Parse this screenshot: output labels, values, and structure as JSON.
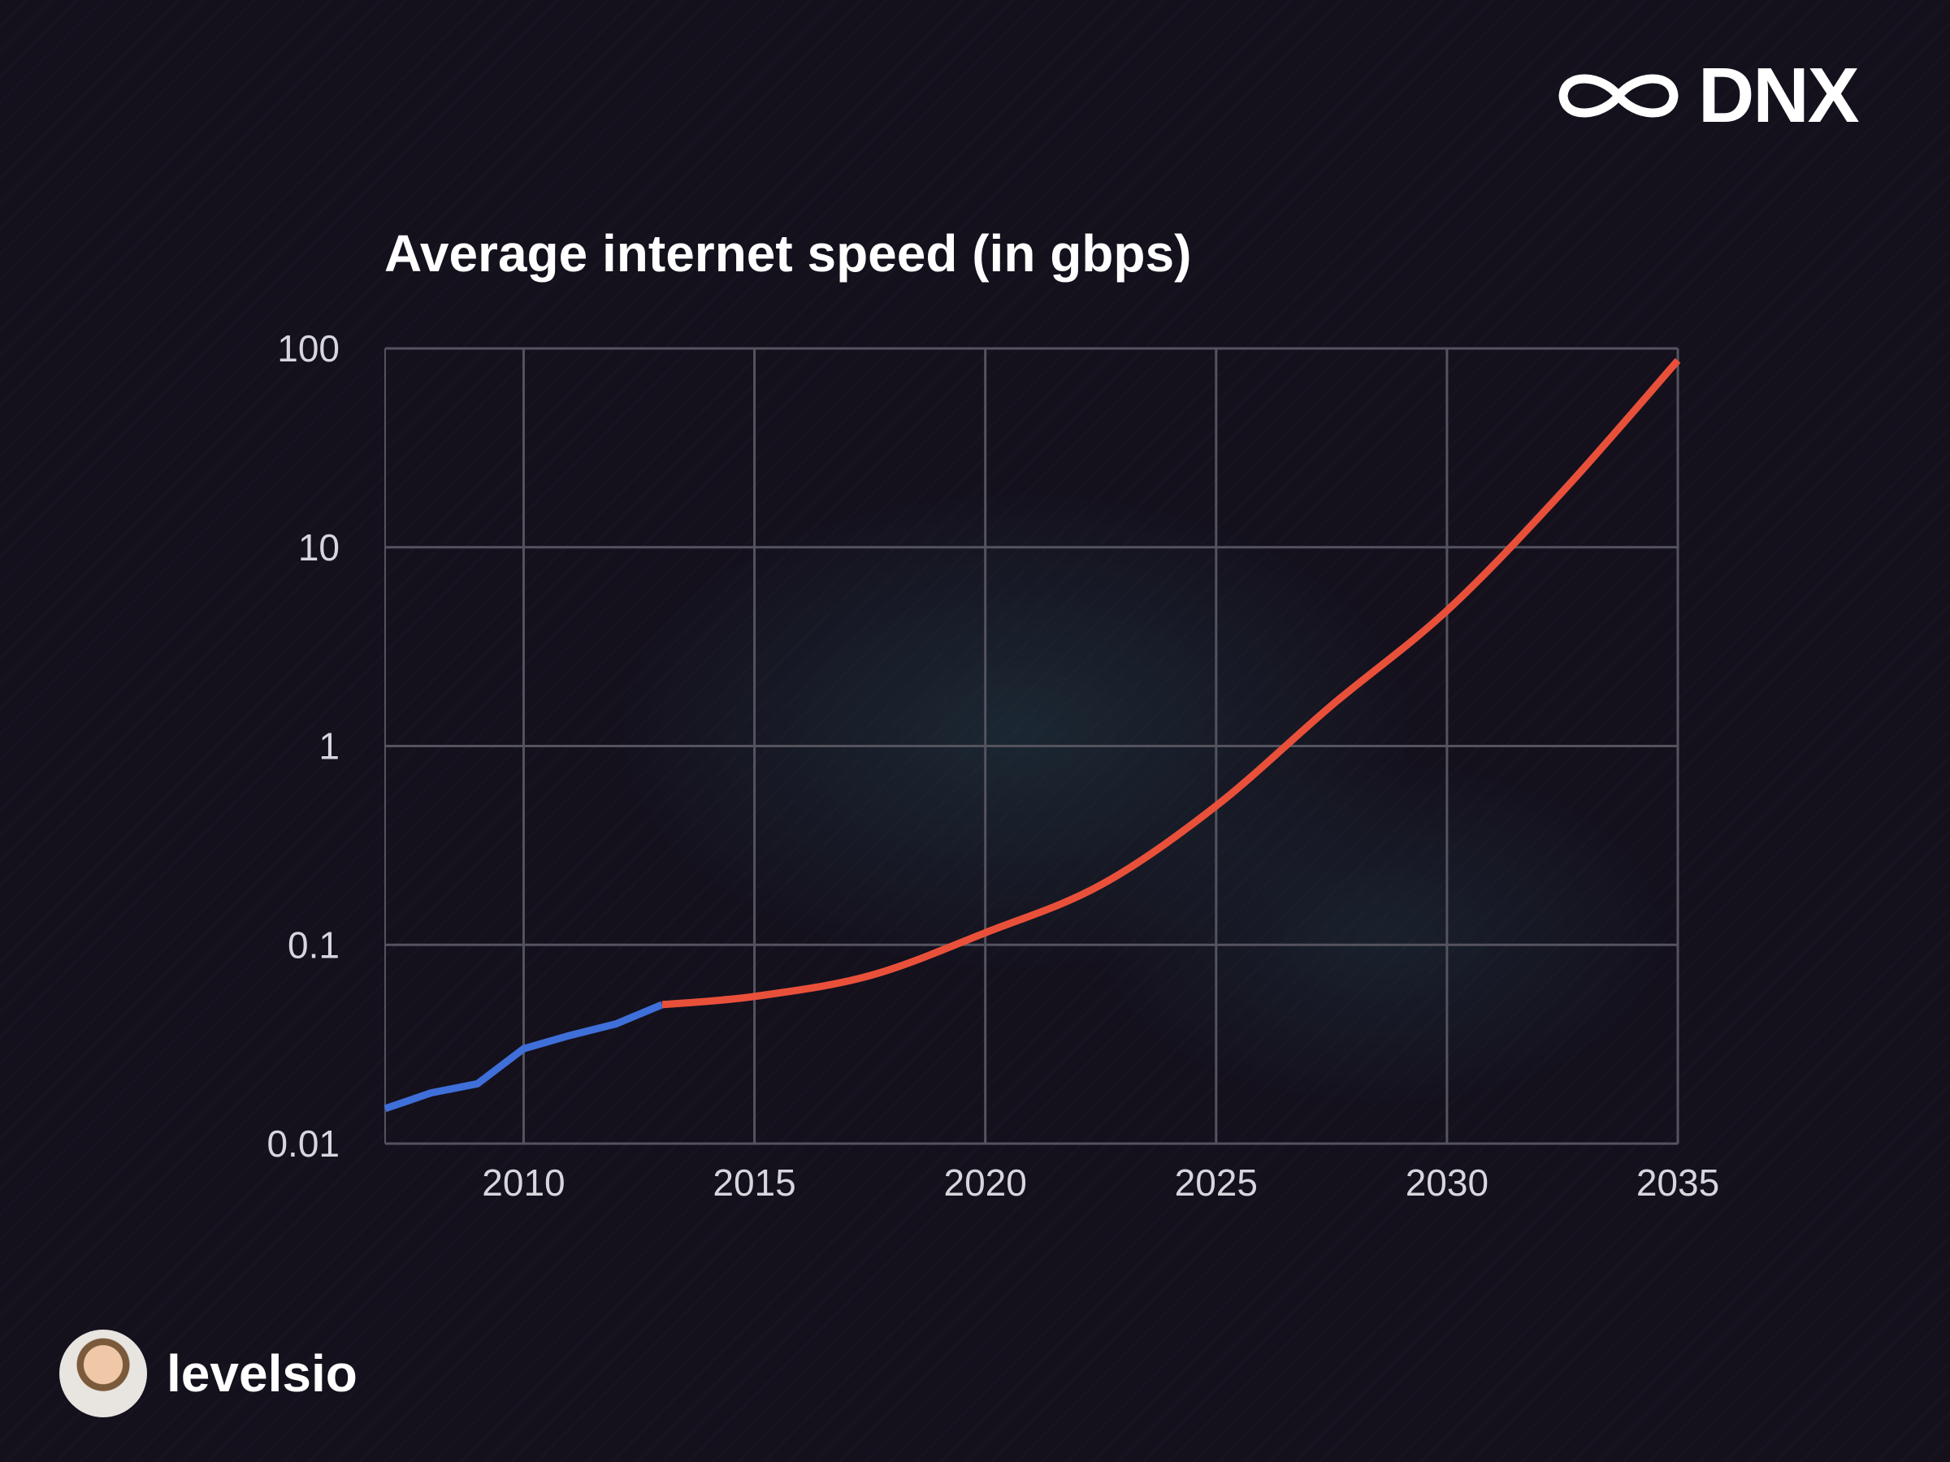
{
  "brand": {
    "logo_text": "DNX",
    "logo_icon": "infinity-icon"
  },
  "author": {
    "name": "levelsio"
  },
  "colors": {
    "background": "#14111d",
    "historical": "#3f6fd8",
    "projection": "#e9503a",
    "grid": "#55535e"
  },
  "chart_data": {
    "type": "line",
    "title": "Average internet speed (in gbps)",
    "xlabel": "",
    "ylabel": "",
    "x_scale": "linear",
    "y_scale": "log",
    "xlim": [
      2007,
      2035
    ],
    "ylim": [
      0.01,
      100
    ],
    "x_ticks": [
      "2010",
      "2015",
      "2020",
      "2025",
      "2030",
      "2035"
    ],
    "y_ticks": [
      "100",
      "10",
      "1",
      "0.1",
      "0.01"
    ],
    "grid": true,
    "series": [
      {
        "color": "#3f6fd8",
        "x": [
          2007,
          2008,
          2009,
          2010,
          2011,
          2012,
          2013
        ],
        "y": [
          0.015,
          0.018,
          0.02,
          0.03,
          0.035,
          0.04,
          0.05
        ]
      },
      {
        "color": "#e9503a",
        "x": [
          2013,
          2015,
          2017.5,
          2020,
          2022.5,
          2025,
          2027.5,
          2030,
          2032.5,
          2035
        ],
        "y": [
          0.05,
          0.055,
          0.07,
          0.115,
          0.2,
          0.5,
          1.6,
          4.8,
          19,
          87
        ]
      }
    ]
  }
}
